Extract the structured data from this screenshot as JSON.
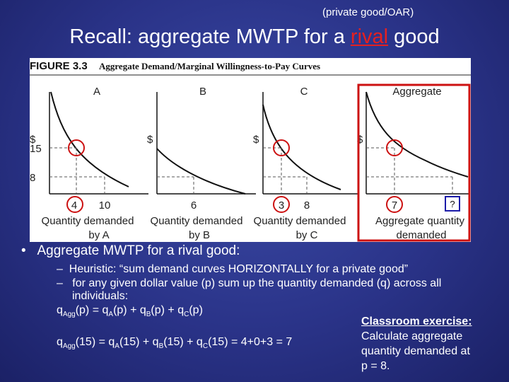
{
  "header": {
    "subtitle": "(private good/OAR)",
    "title_pre": "Recall: aggregate MWTP for a ",
    "title_em": "rival",
    "title_post": " good"
  },
  "figure": {
    "label": "FIGURE 3.3",
    "caption": "Aggregate Demand/Marginal Willingness-to-Pay Curves",
    "panels": [
      {
        "name": "A",
        "ylabel": "$",
        "yticks": [
          "15",
          "8"
        ],
        "xticks": [
          "4",
          "10"
        ],
        "xlabel1": "Quantity demanded",
        "xlabel2": "by A"
      },
      {
        "name": "B",
        "ylabel": "$",
        "xticks": [
          "6"
        ],
        "xlabel1": "Quantity demanded",
        "xlabel2": "by B"
      },
      {
        "name": "C",
        "ylabel": "$",
        "xticks": [
          "3",
          "8"
        ],
        "xlabel1": "Quantity demanded",
        "xlabel2": "by C"
      },
      {
        "name": "Aggregate",
        "ylabel": "$",
        "xticks": [
          "7"
        ],
        "question": "?",
        "xlabel1": "Aggregate quantity",
        "xlabel2": "demanded"
      }
    ]
  },
  "bullets": {
    "main": "Aggregate MWTP for a rival good:",
    "h1": "Heuristic: “sum demand curves HORIZONTALLY for a private good”",
    "h2a": "for any given dollar value (p) sum up the quantity demanded (q) across all",
    "h2b": "individuals:",
    "dash": "–"
  },
  "formula1": {
    "q": "q",
    "agg": "Agg",
    "lhs": "(p) = q",
    "a": "A",
    "m1": "(p) + q",
    "b": "B",
    "m2": "(p) + q",
    "c": "C",
    "end": "(p)"
  },
  "formula2": {
    "q": "q",
    "agg": "Agg",
    "lhs": "(15) = q",
    "a": "A",
    "m1": "(15) + q",
    "b": "B",
    "m2": "(15) + q",
    "c": "C",
    "end": "(15) = 4+0+3 = 7"
  },
  "exercise": {
    "heading": "Classroom exercise:",
    "line1": "Calculate aggregate",
    "line2": "quantity demanded at",
    "line3": "p = 8."
  },
  "colors": {
    "accent_red": "#e52020",
    "highlight": "#cc1111"
  }
}
